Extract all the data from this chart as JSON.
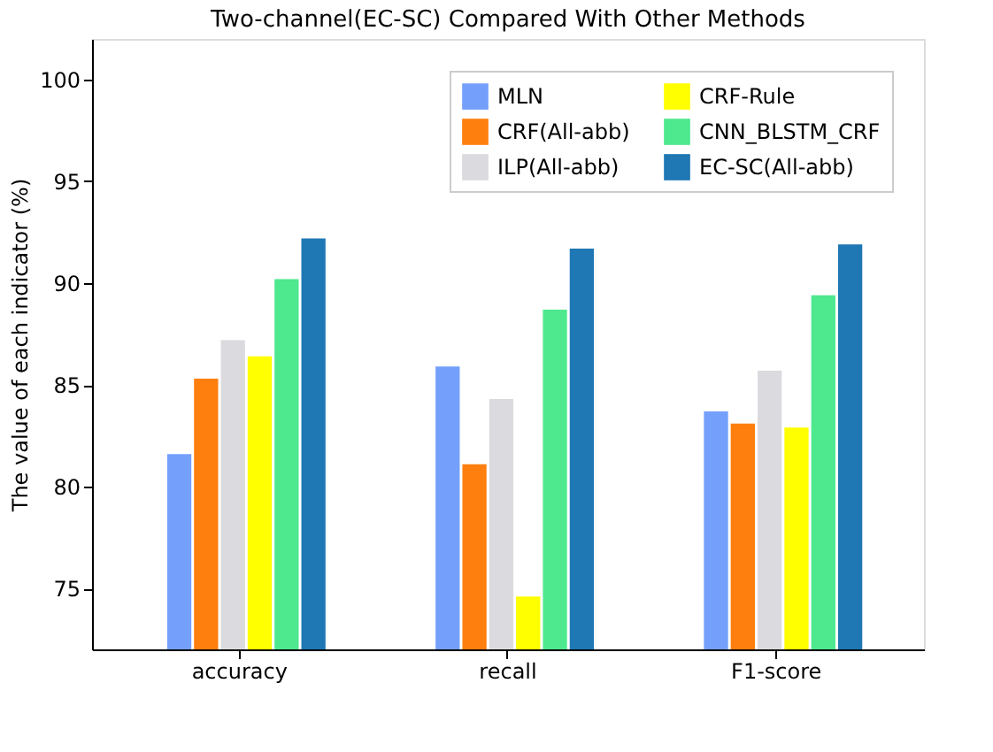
{
  "chart_data": {
    "type": "bar",
    "title": "Two-channel(EC-SC) Compared With Other Methods",
    "ylabel": "The value of each indicator (%)",
    "categories": [
      "accuracy",
      "recall",
      "F1-score"
    ],
    "series": [
      {
        "name": "MLN",
        "color": "#74a0fb",
        "values": [
          81.6,
          85.9,
          83.7
        ]
      },
      {
        "name": "CRF(All-abb)",
        "color": "#ff7f0e",
        "values": [
          85.3,
          81.1,
          83.1
        ]
      },
      {
        "name": "ILP(All-abb)",
        "color": "#dadadf",
        "values": [
          87.2,
          84.3,
          85.7
        ]
      },
      {
        "name": "CRF-Rule",
        "color": "#ffff00",
        "values": [
          86.4,
          74.6,
          82.9
        ]
      },
      {
        "name": "CNN_BLSTM_CRF",
        "color": "#4ee88f",
        "values": [
          90.2,
          88.7,
          89.4
        ]
      },
      {
        "name": "EC-SC(All-abb)",
        "color": "#1f77b4",
        "values": [
          92.2,
          91.7,
          91.9
        ]
      }
    ],
    "ylim": [
      72,
      102
    ],
    "yticks": [
      75,
      80,
      85,
      90,
      95,
      100
    ],
    "grid": false,
    "legend": "top right"
  }
}
